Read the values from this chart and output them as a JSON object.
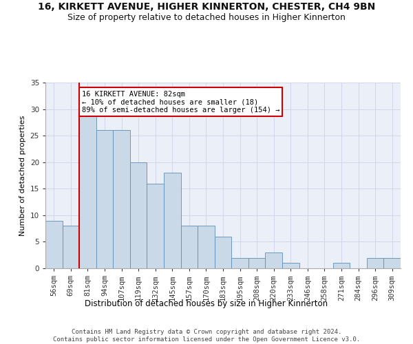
{
  "title1": "16, KIRKETT AVENUE, HIGHER KINNERTON, CHESTER, CH4 9BN",
  "title2": "Size of property relative to detached houses in Higher Kinnerton",
  "xlabel": "Distribution of detached houses by size in Higher Kinnerton",
  "ylabel": "Number of detached properties",
  "bar_labels": [
    "56sqm",
    "69sqm",
    "81sqm",
    "94sqm",
    "107sqm",
    "119sqm",
    "132sqm",
    "145sqm",
    "157sqm",
    "170sqm",
    "183sqm",
    "195sqm",
    "208sqm",
    "220sqm",
    "233sqm",
    "246sqm",
    "258sqm",
    "271sqm",
    "284sqm",
    "296sqm",
    "309sqm"
  ],
  "bar_values": [
    9,
    8,
    29,
    26,
    26,
    20,
    16,
    18,
    8,
    8,
    6,
    2,
    2,
    3,
    1,
    0,
    0,
    1,
    0,
    2,
    2
  ],
  "bar_color": "#c9d9e8",
  "bar_edge_color": "#5b8db8",
  "property_line_index": 2,
  "property_line_color": "#cc0000",
  "annotation_text": "16 KIRKETT AVENUE: 82sqm\n← 10% of detached houses are smaller (18)\n89% of semi-detached houses are larger (154) →",
  "annotation_box_color": "#ffffff",
  "annotation_box_edge_color": "#cc0000",
  "ylim": [
    0,
    35
  ],
  "yticks": [
    0,
    5,
    10,
    15,
    20,
    25,
    30,
    35
  ],
  "grid_color": "#d0d0e8",
  "bg_color": "#eaeff8",
  "footer_text": "Contains HM Land Registry data © Crown copyright and database right 2024.\nContains public sector information licensed under the Open Government Licence v3.0.",
  "title1_fontsize": 10,
  "title2_fontsize": 9,
  "xlabel_fontsize": 8.5,
  "ylabel_fontsize": 8,
  "tick_fontsize": 7.5,
  "annotation_fontsize": 7.5,
  "footer_fontsize": 6.5
}
